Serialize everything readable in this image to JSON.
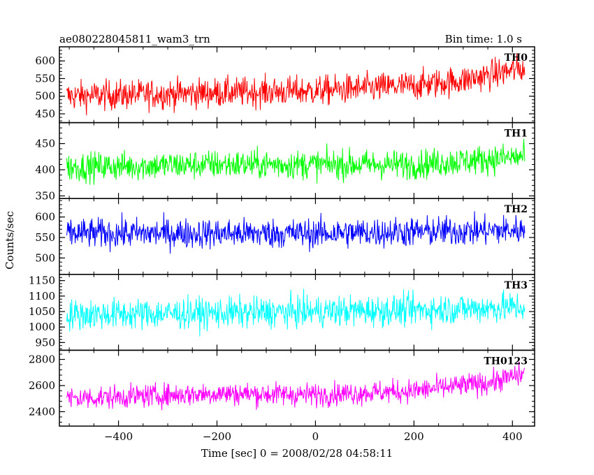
{
  "header": {
    "title": "ae080228045811_wam3_trn",
    "bin_time": "Bin time: 1.0 s"
  },
  "chart_data": {
    "type": "line",
    "xlabel": "Time [sec] 0 = 2008/02/28 04:58:11",
    "ylabel": "Counts/sec",
    "xlim": [
      -520,
      445
    ],
    "x_ticks": [
      -400,
      -200,
      0,
      200,
      400
    ],
    "x_tick_labels": [
      "−400",
      "−200",
      "0",
      "200",
      "400"
    ],
    "x_range_data": [
      -505,
      425
    ],
    "bin_time_s": 1.0,
    "panels": [
      {
        "name": "TH0",
        "color": "#ff0000",
        "ylim": [
          425,
          640
        ],
        "yticks": [
          450,
          500,
          550,
          600
        ],
        "trend": [
          [
            -505,
            500
          ],
          [
            -200,
            510
          ],
          [
            0,
            515
          ],
          [
            200,
            530
          ],
          [
            300,
            545
          ],
          [
            425,
            580
          ]
        ],
        "noise": 38
      },
      {
        "name": "TH1",
        "color": "#00ff00",
        "ylim": [
          345,
          490
        ],
        "yticks": [
          350,
          400,
          450
        ],
        "trend": [
          [
            -505,
            405
          ],
          [
            -200,
            410
          ],
          [
            0,
            410
          ],
          [
            200,
            410
          ],
          [
            425,
            425
          ]
        ],
        "noise": 25
      },
      {
        "name": "TH2",
        "color": "#0000ff",
        "ylim": [
          460,
          645
        ],
        "yticks": [
          500,
          550,
          600
        ],
        "trend": [
          [
            -505,
            560
          ],
          [
            0,
            560
          ],
          [
            425,
            568
          ]
        ],
        "noise": 33
      },
      {
        "name": "TH3",
        "color": "#00ffff",
        "ylim": [
          925,
          1170
        ],
        "yticks": [
          950,
          1000,
          1050,
          1100,
          1150
        ],
        "trend": [
          [
            -505,
            1040
          ],
          [
            -200,
            1045
          ],
          [
            0,
            1050
          ],
          [
            200,
            1055
          ],
          [
            425,
            1065
          ]
        ],
        "noise": 45
      },
      {
        "name": "TH0123",
        "color": "#ff00ff",
        "ylim": [
          2290,
          2870
        ],
        "yticks": [
          2400,
          2600,
          2800
        ],
        "trend": [
          [
            -505,
            2500
          ],
          [
            -200,
            2540
          ],
          [
            0,
            2530
          ],
          [
            200,
            2560
          ],
          [
            350,
            2620
          ],
          [
            425,
            2690
          ]
        ],
        "noise": 80
      }
    ]
  }
}
